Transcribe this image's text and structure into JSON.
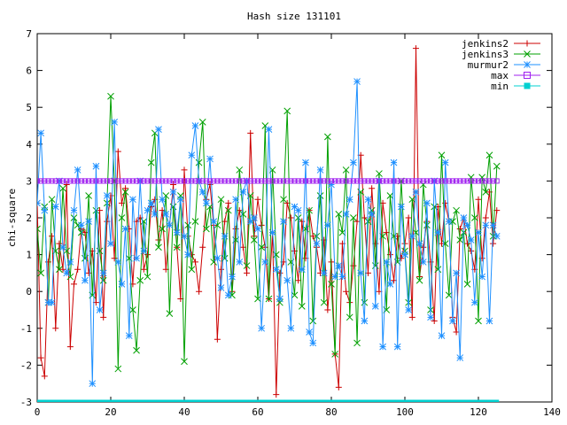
{
  "chart_data": {
    "type": "line",
    "title": "Hash size 131101",
    "xlabel": "",
    "ylabel": "chi-square",
    "xlim": [
      0,
      140
    ],
    "ylim": [
      -3,
      7
    ],
    "xticks": [
      0,
      20,
      40,
      60,
      80,
      100,
      120,
      140
    ],
    "yticks": [
      -3,
      -2,
      -1,
      0,
      1,
      2,
      3,
      4,
      5,
      6,
      7
    ],
    "grid": false,
    "legend_position": "top-right",
    "series": [
      {
        "name": "jenkins2",
        "color": "#cc0000",
        "marker": "plus",
        "x": [
          0,
          1,
          2,
          3,
          4,
          5,
          6,
          7,
          8,
          9,
          10,
          11,
          12,
          13,
          14,
          15,
          16,
          17,
          18,
          19,
          20,
          21,
          22,
          23,
          24,
          25,
          26,
          27,
          28,
          29,
          30,
          31,
          32,
          33,
          34,
          35,
          36,
          37,
          38,
          39,
          40,
          41,
          42,
          43,
          44,
          45,
          46,
          47,
          48,
          49,
          50,
          51,
          52,
          53,
          54,
          55,
          56,
          57,
          58,
          59,
          60,
          61,
          62,
          63,
          64,
          65,
          66,
          67,
          68,
          69,
          70,
          71,
          72,
          73,
          74,
          75,
          76,
          77,
          78,
          79,
          80,
          81,
          82,
          83,
          84,
          85,
          86,
          87,
          88,
          89,
          90,
          91,
          92,
          93,
          94,
          95,
          96,
          97,
          98,
          99,
          100,
          101,
          102,
          103,
          104,
          105,
          106,
          107,
          108,
          109,
          110,
          111,
          112,
          113,
          114,
          115,
          116,
          117,
          118,
          119,
          120,
          121,
          122,
          123,
          124,
          125
        ],
        "y": [
          2.4,
          -1.8,
          -2.3,
          0.8,
          1.5,
          -1.0,
          1.3,
          0.6,
          2.9,
          -1.5,
          0.2,
          0.6,
          1.7,
          1.6,
          0.5,
          1.1,
          -0.3,
          2.2,
          -0.7,
          1.9,
          2.6,
          0.9,
          3.8,
          2.4,
          2.8,
          1.7,
          0.2,
          1.9,
          2.0,
          0.6,
          1.0,
          2.3,
          2.5,
          1.4,
          2.2,
          0.6,
          1.8,
          2.9,
          1.2,
          -0.2,
          3.3,
          1.5,
          1.0,
          0.8,
          0.0,
          1.2,
          2.5,
          2.9,
          1.8,
          -1.3,
          0.6,
          1.9,
          2.4,
          0.0,
          1.7,
          2.2,
          1.2,
          0.5,
          4.3,
          1.5,
          2.5,
          1.8,
          1.2,
          -0.2,
          1.6,
          -2.8,
          0.5,
          0.8,
          2.4,
          2.0,
          1.1,
          0.3,
          1.9,
          0.9,
          2.2,
          1.5,
          1.2,
          0.5,
          1.4,
          -0.5,
          0.8,
          -1.7,
          -2.6,
          1.3,
          0.0,
          -0.3,
          0.7,
          1.9,
          3.7,
          2.0,
          0.5,
          2.8,
          1.3,
          0.0,
          2.4,
          1.6,
          1.0,
          0.3,
          1.5,
          0.9,
          1.3,
          2.0,
          -0.7,
          6.6,
          0.4,
          1.2,
          1.9,
          0.8,
          -0.8,
          2.3,
          1.3,
          2.4,
          1.9,
          -0.7,
          -1.1,
          1.7,
          2.0,
          1.3,
          1.1,
          0.6,
          2.5,
          0.9,
          2.0,
          2.7,
          1.3,
          2.2
        ]
      },
      {
        "name": "jenkins3",
        "color": "#00a000",
        "marker": "cross",
        "x": [
          0,
          1,
          2,
          3,
          4,
          5,
          6,
          7,
          8,
          9,
          10,
          11,
          12,
          13,
          14,
          15,
          16,
          17,
          18,
          19,
          20,
          21,
          22,
          23,
          24,
          25,
          26,
          27,
          28,
          29,
          30,
          31,
          32,
          33,
          34,
          35,
          36,
          37,
          38,
          39,
          40,
          41,
          42,
          43,
          44,
          45,
          46,
          47,
          48,
          49,
          50,
          51,
          52,
          53,
          54,
          55,
          56,
          57,
          58,
          59,
          60,
          61,
          62,
          63,
          64,
          65,
          66,
          67,
          68,
          69,
          70,
          71,
          72,
          73,
          74,
          75,
          76,
          77,
          78,
          79,
          80,
          81,
          82,
          83,
          84,
          85,
          86,
          87,
          88,
          89,
          90,
          91,
          92,
          93,
          94,
          95,
          96,
          97,
          98,
          99,
          100,
          101,
          102,
          103,
          104,
          105,
          106,
          107,
          108,
          109,
          110,
          111,
          112,
          113,
          114,
          115,
          116,
          117,
          118,
          119,
          120,
          121,
          122,
          123,
          124,
          125
        ],
        "y": [
          1.7,
          0.5,
          2.3,
          -0.3,
          2.5,
          1.1,
          0.6,
          2.8,
          1.1,
          0.4,
          2.0,
          1.8,
          1.6,
          0.9,
          2.6,
          -0.1,
          2.2,
          1.1,
          0.3,
          2.4,
          5.3,
          3.0,
          -2.1,
          2.0,
          2.7,
          0.9,
          -0.5,
          -1.6,
          0.3,
          1.9,
          0.4,
          3.5,
          4.3,
          1.2,
          1.7,
          2.6,
          -0.6,
          2.3,
          1.2,
          2.6,
          -1.9,
          1.8,
          0.6,
          1.9,
          3.5,
          4.6,
          1.7,
          2.3,
          0.8,
          1.8,
          2.5,
          0.9,
          2.2,
          -0.1,
          1.4,
          3.3,
          2.1,
          0.7,
          2.6,
          1.4,
          -0.2,
          1.2,
          4.5,
          -0.2,
          3.3,
          1.0,
          -0.3,
          2.5,
          4.9,
          0.8,
          -0.1,
          2.0,
          -0.4,
          1.7,
          2.2,
          -0.8,
          1.5,
          2.6,
          -0.3,
          4.2,
          0.2,
          -1.7,
          2.1,
          1.6,
          3.3,
          -0.7,
          2.0,
          -1.4,
          2.7,
          -0.3,
          1.9,
          2.2,
          0.7,
          3.2,
          1.5,
          -0.5,
          2.6,
          1.5,
          0.8,
          3.0,
          1.1,
          -0.3,
          2.5,
          1.6,
          0.3,
          2.9,
          1.8,
          -0.5,
          2.3,
          0.6,
          3.7,
          1.3,
          -0.1,
          1.9,
          2.2,
          1.4,
          1.6,
          0.2,
          3.1,
          2.0,
          -0.8,
          3.1,
          2.7,
          3.7,
          1.5,
          3.4
        ]
      },
      {
        "name": "murmur2",
        "color": "#1e90ff",
        "marker": "star",
        "x": [
          0,
          1,
          2,
          3,
          4,
          5,
          6,
          7,
          8,
          9,
          10,
          11,
          12,
          13,
          14,
          15,
          16,
          17,
          18,
          19,
          20,
          21,
          22,
          23,
          24,
          25,
          26,
          27,
          28,
          29,
          30,
          31,
          32,
          33,
          34,
          35,
          36,
          37,
          38,
          39,
          40,
          41,
          42,
          43,
          44,
          45,
          46,
          47,
          48,
          49,
          50,
          51,
          52,
          53,
          54,
          55,
          56,
          57,
          58,
          59,
          60,
          61,
          62,
          63,
          64,
          65,
          66,
          67,
          68,
          69,
          70,
          71,
          72,
          73,
          74,
          75,
          76,
          77,
          78,
          79,
          80,
          81,
          82,
          83,
          84,
          85,
          86,
          87,
          88,
          89,
          90,
          91,
          92,
          93,
          94,
          95,
          96,
          97,
          98,
          99,
          100,
          101,
          102,
          103,
          104,
          105,
          106,
          107,
          108,
          109,
          110,
          111,
          112,
          113,
          114,
          115,
          116,
          117,
          118,
          119,
          120,
          121,
          122,
          123,
          124,
          125
        ],
        "y": [
          2.4,
          4.3,
          2.2,
          -0.3,
          -0.3,
          2.3,
          3.0,
          1.2,
          0.5,
          0.8,
          2.2,
          3.3,
          1.8,
          0.3,
          1.9,
          -2.5,
          3.4,
          -0.5,
          0.5,
          2.6,
          1.3,
          4.6,
          0.8,
          0.2,
          1.7,
          -1.2,
          2.5,
          0.9,
          3.0,
          1.1,
          2.2,
          2.4,
          2.1,
          4.4,
          2.5,
          2.1,
          1.8,
          2.7,
          1.6,
          2.5,
          1.5,
          1.0,
          3.7,
          4.5,
          3.0,
          2.7,
          2.4,
          3.6,
          1.9,
          0.9,
          0.1,
          1.5,
          -0.1,
          0.4,
          2.5,
          0.8,
          2.7,
          3.0,
          1.9,
          2.0,
          1.7,
          -1.0,
          0.8,
          4.4,
          1.6,
          0.6,
          -0.2,
          1.9,
          0.3,
          -1.0,
          2.3,
          2.2,
          0.6,
          3.5,
          -1.1,
          -1.4,
          1.3,
          3.3,
          0.5,
          1.8,
          2.9,
          0.4,
          0.7,
          0.4,
          2.1,
          2.5,
          3.5,
          5.7,
          0.5,
          -0.8,
          2.5,
          2.1,
          -0.4,
          3.0,
          -1.5,
          0.8,
          0.2,
          3.5,
          -1.5,
          2.3,
          1.0,
          -0.5,
          1.5,
          2.7,
          1.3,
          0.8,
          2.4,
          -0.7,
          3.0,
          1.6,
          -1.2,
          3.5,
          1.9,
          -0.8,
          0.5,
          -1.8,
          2.0,
          1.8,
          1.4,
          -0.3,
          1.6,
          0.4,
          1.8,
          -0.8,
          1.8,
          1.5
        ]
      },
      {
        "name": "max",
        "color": "#a020f0",
        "marker": "square",
        "constant": 3.0,
        "x_range": [
          0,
          125
        ]
      },
      {
        "name": "min",
        "color": "#00d0d0",
        "marker": "filled-square",
        "constant": -3.0,
        "x_range": [
          0,
          125
        ]
      }
    ]
  }
}
